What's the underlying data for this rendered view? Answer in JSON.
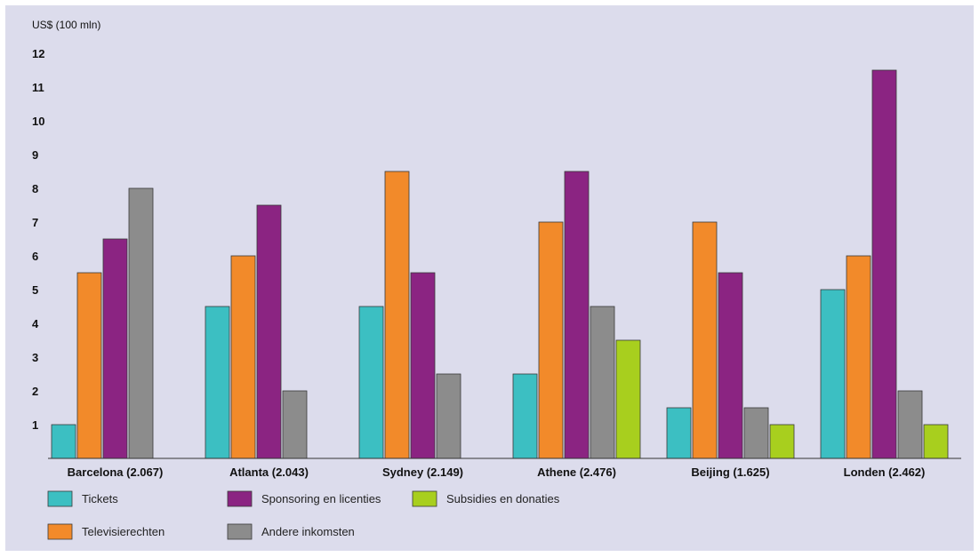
{
  "chart_data": {
    "type": "bar",
    "ylabel": "US$ (100 mln)",
    "ylim": [
      0,
      12
    ],
    "yticks": [
      1,
      2,
      3,
      4,
      5,
      6,
      7,
      8,
      9,
      10,
      11,
      12
    ],
    "grid": false,
    "legend_position": "bottom",
    "categories": [
      "Barcelona (2.067)",
      "Atlanta (2.043)",
      "Sydney (2.149)",
      "Athene (2.476)",
      "Beijing (1.625)",
      "Londen (2.462)"
    ],
    "series": [
      {
        "name": "Tickets",
        "color": "#3cbfc2",
        "values": [
          1,
          4.5,
          4.5,
          2.5,
          1.5,
          5
        ]
      },
      {
        "name": "Televisierechten",
        "color": "#f28a2a",
        "values": [
          5.5,
          6,
          8.5,
          7,
          7,
          6
        ]
      },
      {
        "name": "Sponsoring en licenties",
        "color": "#8b2482",
        "values": [
          6.5,
          7.5,
          5.5,
          8.5,
          5.5,
          11.5
        ]
      },
      {
        "name": "Andere inkomsten",
        "color": "#8c8c8c",
        "values": [
          8,
          2,
          2.5,
          4.5,
          1.5,
          2
        ]
      },
      {
        "name": "Subsidies en donaties",
        "color": "#a8cf1e",
        "values": [
          0,
          0,
          0,
          3.5,
          1,
          1
        ]
      }
    ]
  }
}
